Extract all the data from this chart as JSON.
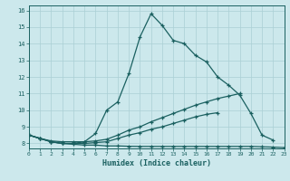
{
  "xlabel": "Humidex (Indice chaleur)",
  "bg_color": "#cce8ec",
  "grid_color": "#aacfd5",
  "line_color": "#1a6060",
  "xlim": [
    0,
    23
  ],
  "ylim": [
    7.7,
    16.3
  ],
  "xticks": [
    0,
    1,
    2,
    3,
    4,
    5,
    6,
    7,
    8,
    9,
    10,
    11,
    12,
    13,
    14,
    15,
    16,
    17,
    18,
    19,
    20,
    21,
    22,
    23
  ],
  "yticks": [
    8,
    9,
    10,
    11,
    12,
    13,
    14,
    15,
    16
  ],
  "lines": [
    {
      "x": [
        0,
        1,
        2,
        3,
        4,
        5,
        6,
        7,
        8,
        9,
        10,
        11,
        12,
        13,
        14,
        15,
        16,
        17,
        18,
        19,
        20,
        21,
        22
      ],
      "y": [
        8.5,
        8.3,
        8.1,
        8.0,
        8.0,
        8.1,
        8.6,
        10.0,
        10.5,
        12.2,
        14.4,
        15.8,
        15.1,
        14.2,
        14.0,
        13.3,
        12.9,
        12.0,
        11.5,
        10.9,
        9.8,
        8.5,
        8.2
      ]
    },
    {
      "x": [
        0,
        1,
        2,
        3,
        4,
        5,
        6,
        7,
        8,
        9,
        10,
        11,
        12,
        13,
        14,
        15,
        16,
        17,
        18,
        19,
        20,
        21,
        22,
        23
      ],
      "y": [
        8.5,
        8.3,
        8.15,
        8.1,
        8.1,
        8.1,
        8.15,
        8.25,
        8.5,
        8.8,
        9.0,
        9.3,
        9.55,
        9.8,
        10.05,
        10.3,
        10.5,
        10.7,
        10.85,
        11.0,
        null,
        null,
        null,
        null
      ]
    },
    {
      "x": [
        0,
        1,
        2,
        3,
        4,
        5,
        6,
        7,
        8,
        9,
        10,
        11,
        12,
        13,
        14,
        15,
        16,
        17,
        18,
        19,
        20
      ],
      "y": [
        8.5,
        8.3,
        8.1,
        8.0,
        8.0,
        8.0,
        8.05,
        8.1,
        8.3,
        8.5,
        8.65,
        8.85,
        9.0,
        9.2,
        9.4,
        9.6,
        9.75,
        9.85,
        null,
        null,
        null
      ]
    },
    {
      "x": [
        0,
        1,
        2,
        3,
        4,
        5,
        6,
        7,
        8,
        9,
        10,
        11,
        12,
        13,
        14,
        15,
        16,
        17,
        18,
        19,
        20,
        21,
        22,
        23
      ],
      "y": [
        8.5,
        8.3,
        8.1,
        8.0,
        7.95,
        7.9,
        7.9,
        7.85,
        7.85,
        7.83,
        7.82,
        7.82,
        7.82,
        7.82,
        7.82,
        7.82,
        7.82,
        7.82,
        7.82,
        7.82,
        7.82,
        7.8,
        7.78,
        7.75
      ]
    }
  ]
}
